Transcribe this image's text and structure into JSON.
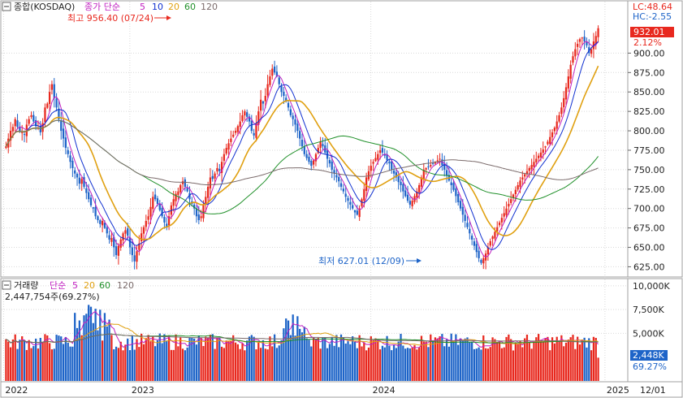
{
  "price_panel": {
    "title": "종합(KOSDAQ)",
    "ma_prefix": "종가 단순",
    "ma_periods": [
      {
        "label": "5",
        "color": "#c020c0"
      },
      {
        "label": "10",
        "color": "#1030d0"
      },
      {
        "label": "20",
        "color": "#e0a010"
      },
      {
        "label": "60",
        "color": "#20902a"
      },
      {
        "label": "120",
        "color": "#7a6a6a"
      }
    ],
    "high_annotation": "최고 956.40 (07/24)",
    "low_annotation": "최저 627.01 (12/09)",
    "lc": "LC:48.64",
    "hc": "HC:-2.55",
    "current_price": "932.01",
    "current_change": "2.12%",
    "y_ticks": [
      "900.00",
      "875.00",
      "850.00",
      "825.00",
      "800.00",
      "775.00",
      "750.00",
      "725.00",
      "700.00",
      "675.00",
      "650.00",
      "625.00"
    ]
  },
  "volume_panel": {
    "title": "거래량",
    "ma_prefix": "단순",
    "ma_periods": [
      {
        "label": "5",
        "color": "#c020c0"
      },
      {
        "label": "20",
        "color": "#e0a010"
      },
      {
        "label": "60",
        "color": "#20902a"
      },
      {
        "label": "120",
        "color": "#7a6a6a"
      }
    ],
    "current_text": "2,447,754주(69.27%)",
    "current_volume": "2,448K",
    "current_pct": "69.27%",
    "y_ticks": [
      "10,000K",
      "7,500K",
      "5,000K"
    ]
  },
  "x_axis": {
    "labels": [
      "2022",
      "2023",
      "2024",
      "2025"
    ],
    "end_label": "12/01"
  },
  "colors": {
    "up": "#e8281e",
    "down": "#1e64c8",
    "grid": "#d9d9d9",
    "price_box": "#e8281e"
  },
  "chart_data": {
    "type": "candlestick",
    "interval": "weekly",
    "price_range": [
      615,
      960
    ],
    "volume_range": [
      0,
      10500
    ],
    "volume_unit": "K shares",
    "high": {
      "value": 956.4,
      "date": "07/24"
    },
    "low": {
      "value": 627.01,
      "date": "12/09"
    },
    "last_close": 932.01,
    "last_change_pct": 2.12,
    "last_volume_k": 2448,
    "close_series": [
      780,
      790,
      800,
      805,
      815,
      805,
      800,
      798,
      795,
      808,
      815,
      820,
      812,
      806,
      804,
      798,
      810,
      830,
      835,
      850,
      860,
      842,
      830,
      815,
      800,
      790,
      778,
      770,
      760,
      752,
      745,
      740,
      732,
      738,
      728,
      720,
      712,
      704,
      700,
      690,
      685,
      680,
      684,
      675,
      668,
      660,
      662,
      650,
      640,
      652,
      660,
      668,
      672,
      665,
      650,
      640,
      632,
      645,
      655,
      668,
      676,
      684,
      690,
      702,
      715,
      712,
      706,
      698,
      690,
      682,
      676,
      690,
      704,
      712,
      719,
      722,
      730,
      735,
      728,
      722,
      712,
      706,
      700,
      690,
      685,
      690,
      705,
      715,
      728,
      740,
      738,
      745,
      752,
      748,
      760,
      770,
      778,
      784,
      790,
      795,
      800,
      806,
      812,
      820,
      825,
      818,
      812,
      800,
      794,
      810,
      825,
      840,
      835,
      845,
      860,
      870,
      880,
      875,
      870,
      860,
      850,
      845,
      838,
      830,
      820,
      815,
      808,
      800,
      790,
      780,
      770,
      765,
      760,
      755,
      762,
      770,
      778,
      786,
      780,
      772,
      764,
      758,
      750,
      745,
      740,
      735,
      728,
      722,
      715,
      710,
      705,
      700,
      695,
      692,
      700,
      712,
      725,
      740,
      748,
      755,
      760,
      765,
      770,
      775,
      772,
      768,
      762,
      758,
      750,
      745,
      740,
      734,
      730,
      722,
      716,
      710,
      705,
      710,
      716,
      722,
      730,
      740,
      750,
      752,
      754,
      756,
      758,
      760,
      762,
      764,
      756,
      750,
      742,
      736,
      730,
      724,
      716,
      708,
      700,
      692,
      684,
      676,
      668,
      660,
      652,
      644,
      636,
      630,
      636,
      642,
      650,
      658,
      664,
      670,
      676,
      682,
      688,
      694,
      700,
      706,
      712,
      718,
      724,
      730,
      736,
      740,
      744,
      748,
      752,
      756,
      760,
      764,
      768,
      772,
      776,
      780,
      786,
      792,
      798,
      804,
      812,
      820,
      830,
      842,
      856,
      870,
      885,
      896,
      905,
      912,
      918,
      920,
      915,
      910,
      900,
      905,
      915,
      922,
      932
    ]
  }
}
